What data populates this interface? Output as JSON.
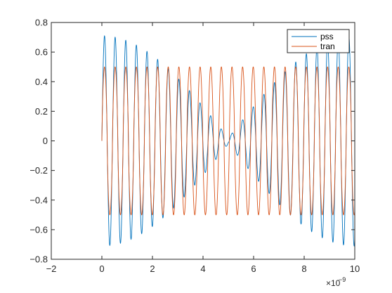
{
  "chart_data": {
    "type": "line",
    "title": "",
    "xlabel": "",
    "ylabel": "",
    "x_exponent_label": "×10",
    "x_exponent_power": "−9",
    "xlim": [
      -2,
      10
    ],
    "ylim": [
      -0.8,
      0.8
    ],
    "x_ticks": [
      -2,
      0,
      2,
      4,
      6,
      8,
      10
    ],
    "x_tick_labels": [
      "−2",
      "0",
      "2",
      "4",
      "6",
      "8",
      "10"
    ],
    "y_ticks": [
      -0.8,
      -0.6,
      -0.4,
      -0.2,
      0,
      0.2,
      0.4,
      0.6,
      0.8
    ],
    "y_tick_labels": [
      "−0.8",
      "−0.6",
      "−0.4",
      "−0.2",
      "0",
      "0.2",
      "0.4",
      "0.6",
      "0.8"
    ],
    "grid": false,
    "legend": {
      "placement": "top-right",
      "entries": [
        "pss",
        "tran"
      ]
    },
    "x_unit_scale": 1e-09,
    "series": [
      {
        "name": "pss",
        "color": "#0072BD",
        "x_range": [
          0,
          10
        ],
        "amplitude_envelope": "0.71 near x=0 and x=10, falling to about 0.02 at x=5",
        "oscillation_period": 0.42,
        "peak_amplitude": 0.71
      },
      {
        "name": "tran",
        "color": "#D95319",
        "x_range": [
          0,
          10
        ],
        "amplitude_envelope": "constant",
        "oscillation_period": 0.42,
        "peak_amplitude": 0.5
      }
    ]
  }
}
